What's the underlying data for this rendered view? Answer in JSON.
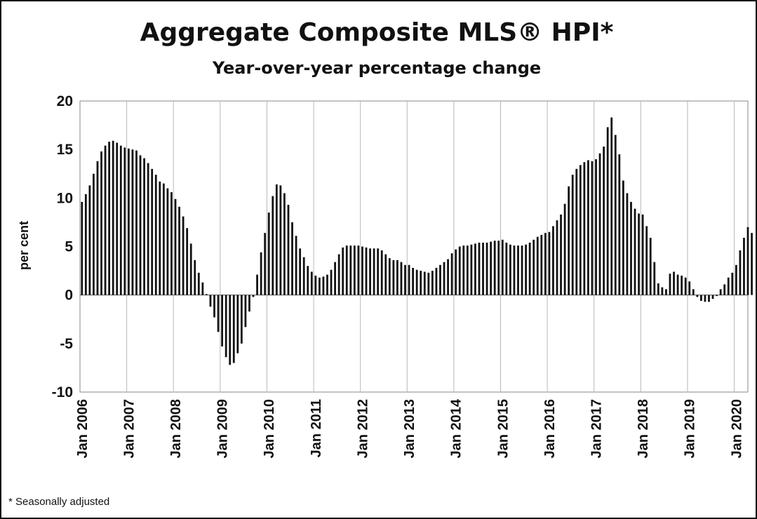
{
  "chart_data": {
    "type": "bar",
    "title": "Aggregate Composite MLS® HPI*",
    "subtitle": "Year-over-year percentage change",
    "xlabel": "",
    "ylabel": "per cent",
    "ylim": [
      -10,
      20
    ],
    "yticks": [
      20,
      15,
      10,
      5,
      0,
      -5,
      -10
    ],
    "xticks": [
      "Jan 2006",
      "Jan 2007",
      "Jan 2008",
      "Jan 2009",
      "Jan 2010",
      "Jan 2011",
      "Jan 2012",
      "Jan 2013",
      "Jan 2014",
      "Jan 2015",
      "Jan 2016",
      "Jan 2017",
      "Jan 2018",
      "Jan 2019",
      "Jan 2020"
    ],
    "grid": "vertical",
    "legend": "none",
    "footnote": "* Seasonally adjusted",
    "start": "Jan 2006",
    "frequency": "monthly",
    "bar_color": "#111111",
    "values": [
      9.6,
      10.4,
      11.3,
      12.5,
      13.8,
      14.8,
      15.4,
      15.8,
      15.9,
      15.7,
      15.4,
      15.2,
      15.1,
      15.0,
      14.9,
      14.4,
      14.1,
      13.6,
      13.0,
      12.4,
      11.7,
      11.5,
      11.0,
      10.6,
      9.9,
      9.1,
      8.1,
      6.9,
      5.3,
      3.6,
      2.3,
      1.3,
      0.1,
      -1.2,
      -2.3,
      -3.8,
      -5.3,
      -6.4,
      -7.2,
      -7.0,
      -6.0,
      -5.0,
      -3.3,
      -1.7,
      -0.2,
      2.1,
      4.4,
      6.4,
      8.5,
      10.2,
      11.4,
      11.3,
      10.5,
      9.3,
      7.5,
      6.1,
      4.8,
      3.9,
      3.0,
      2.4,
      2.0,
      1.8,
      1.9,
      2.1,
      2.6,
      3.4,
      4.2,
      4.9,
      5.1,
      5.1,
      5.1,
      5.1,
      5.0,
      4.9,
      4.8,
      4.8,
      4.8,
      4.6,
      4.2,
      3.8,
      3.6,
      3.6,
      3.4,
      3.1,
      3.1,
      2.8,
      2.6,
      2.5,
      2.4,
      2.3,
      2.5,
      2.8,
      3.1,
      3.4,
      3.7,
      4.3,
      4.7,
      5.0,
      5.1,
      5.1,
      5.2,
      5.3,
      5.4,
      5.4,
      5.4,
      5.5,
      5.6,
      5.6,
      5.7,
      5.4,
      5.2,
      5.1,
      5.1,
      5.1,
      5.2,
      5.4,
      5.7,
      6.0,
      6.2,
      6.4,
      6.5,
      7.1,
      7.7,
      8.3,
      9.4,
      11.2,
      12.4,
      13.0,
      13.4,
      13.7,
      13.9,
      13.8,
      14.0,
      14.6,
      15.3,
      17.3,
      18.3,
      16.5,
      14.5,
      11.8,
      10.5,
      9.6,
      8.9,
      8.4,
      8.3,
      7.1,
      5.9,
      3.4,
      1.2,
      0.8,
      0.6,
      2.2,
      2.4,
      2.1,
      2.0,
      1.8,
      1.4,
      0.6,
      -0.2,
      -0.6,
      -0.7,
      -0.7,
      -0.4,
      -0.1,
      0.6,
      1.1,
      1.8,
      2.3,
      3.1,
      4.6,
      5.9,
      7.0,
      6.4
    ]
  }
}
